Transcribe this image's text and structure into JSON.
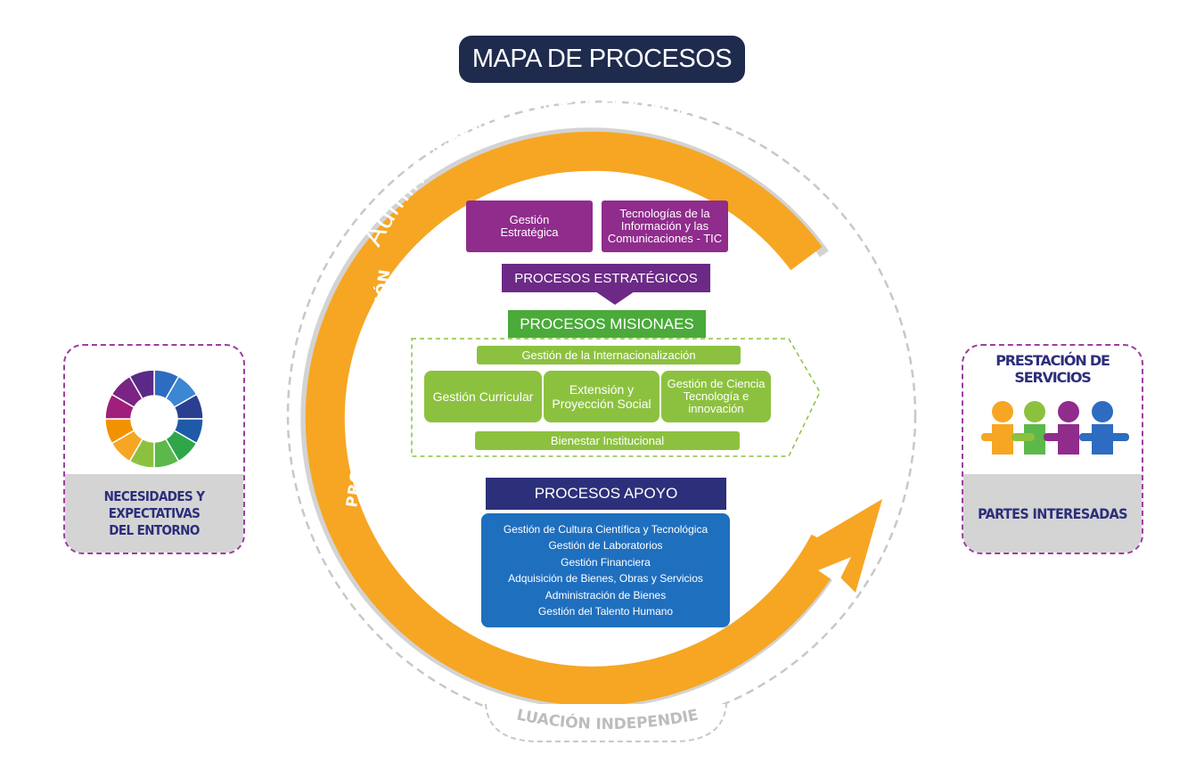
{
  "title": "MAPA DE PROCESOS",
  "cycle": {
    "arc_label": "Administración Integral de la Gestión",
    "left_label": "PROCESO DE EVALUACIÓN",
    "bottom_label": "EVALUACIÓN INDEPENDIENTE"
  },
  "strategic": {
    "boxes": [
      "Gestión\nEstratégica",
      "Tecnologías de la\nInformación y las\nComunicaciones - TIC"
    ],
    "header": "PROCESOS ESTRATÉGICOS"
  },
  "missional": {
    "header": "PROCESOS MISIONAES",
    "top_bar": "Gestión de la Internacionalización",
    "boxes": [
      "Gestión Curricular",
      "Extensión y\nProyección Social",
      "Gestión de Ciencia\nTecnología e\ninnovación"
    ],
    "bottom_bar": "Bienestar Institucional"
  },
  "support": {
    "header": "PROCESOS APOYO",
    "items": [
      "Gestión de Cultura Científica y Tecnológica",
      "Gestión de Laboratorios",
      "Gestión Financiera",
      "Adquisición de Bienes, Obras y Servicios",
      "Administración de Bienes",
      "Gestión del Talento Humano"
    ]
  },
  "left_card": {
    "label": "NECESIDADES Y EXPECTATIVAS\nDEL ENTORNO"
  },
  "right_card": {
    "title": "PRESTACIÓN DE SERVICIOS",
    "label": "PARTES INTERESADAS"
  },
  "colors": {
    "navy": "#1f2b4d",
    "orange": "#f6a623",
    "purple": "#8f2c8c",
    "green": "#8cc13f",
    "blue": "#1f6fbf"
  }
}
